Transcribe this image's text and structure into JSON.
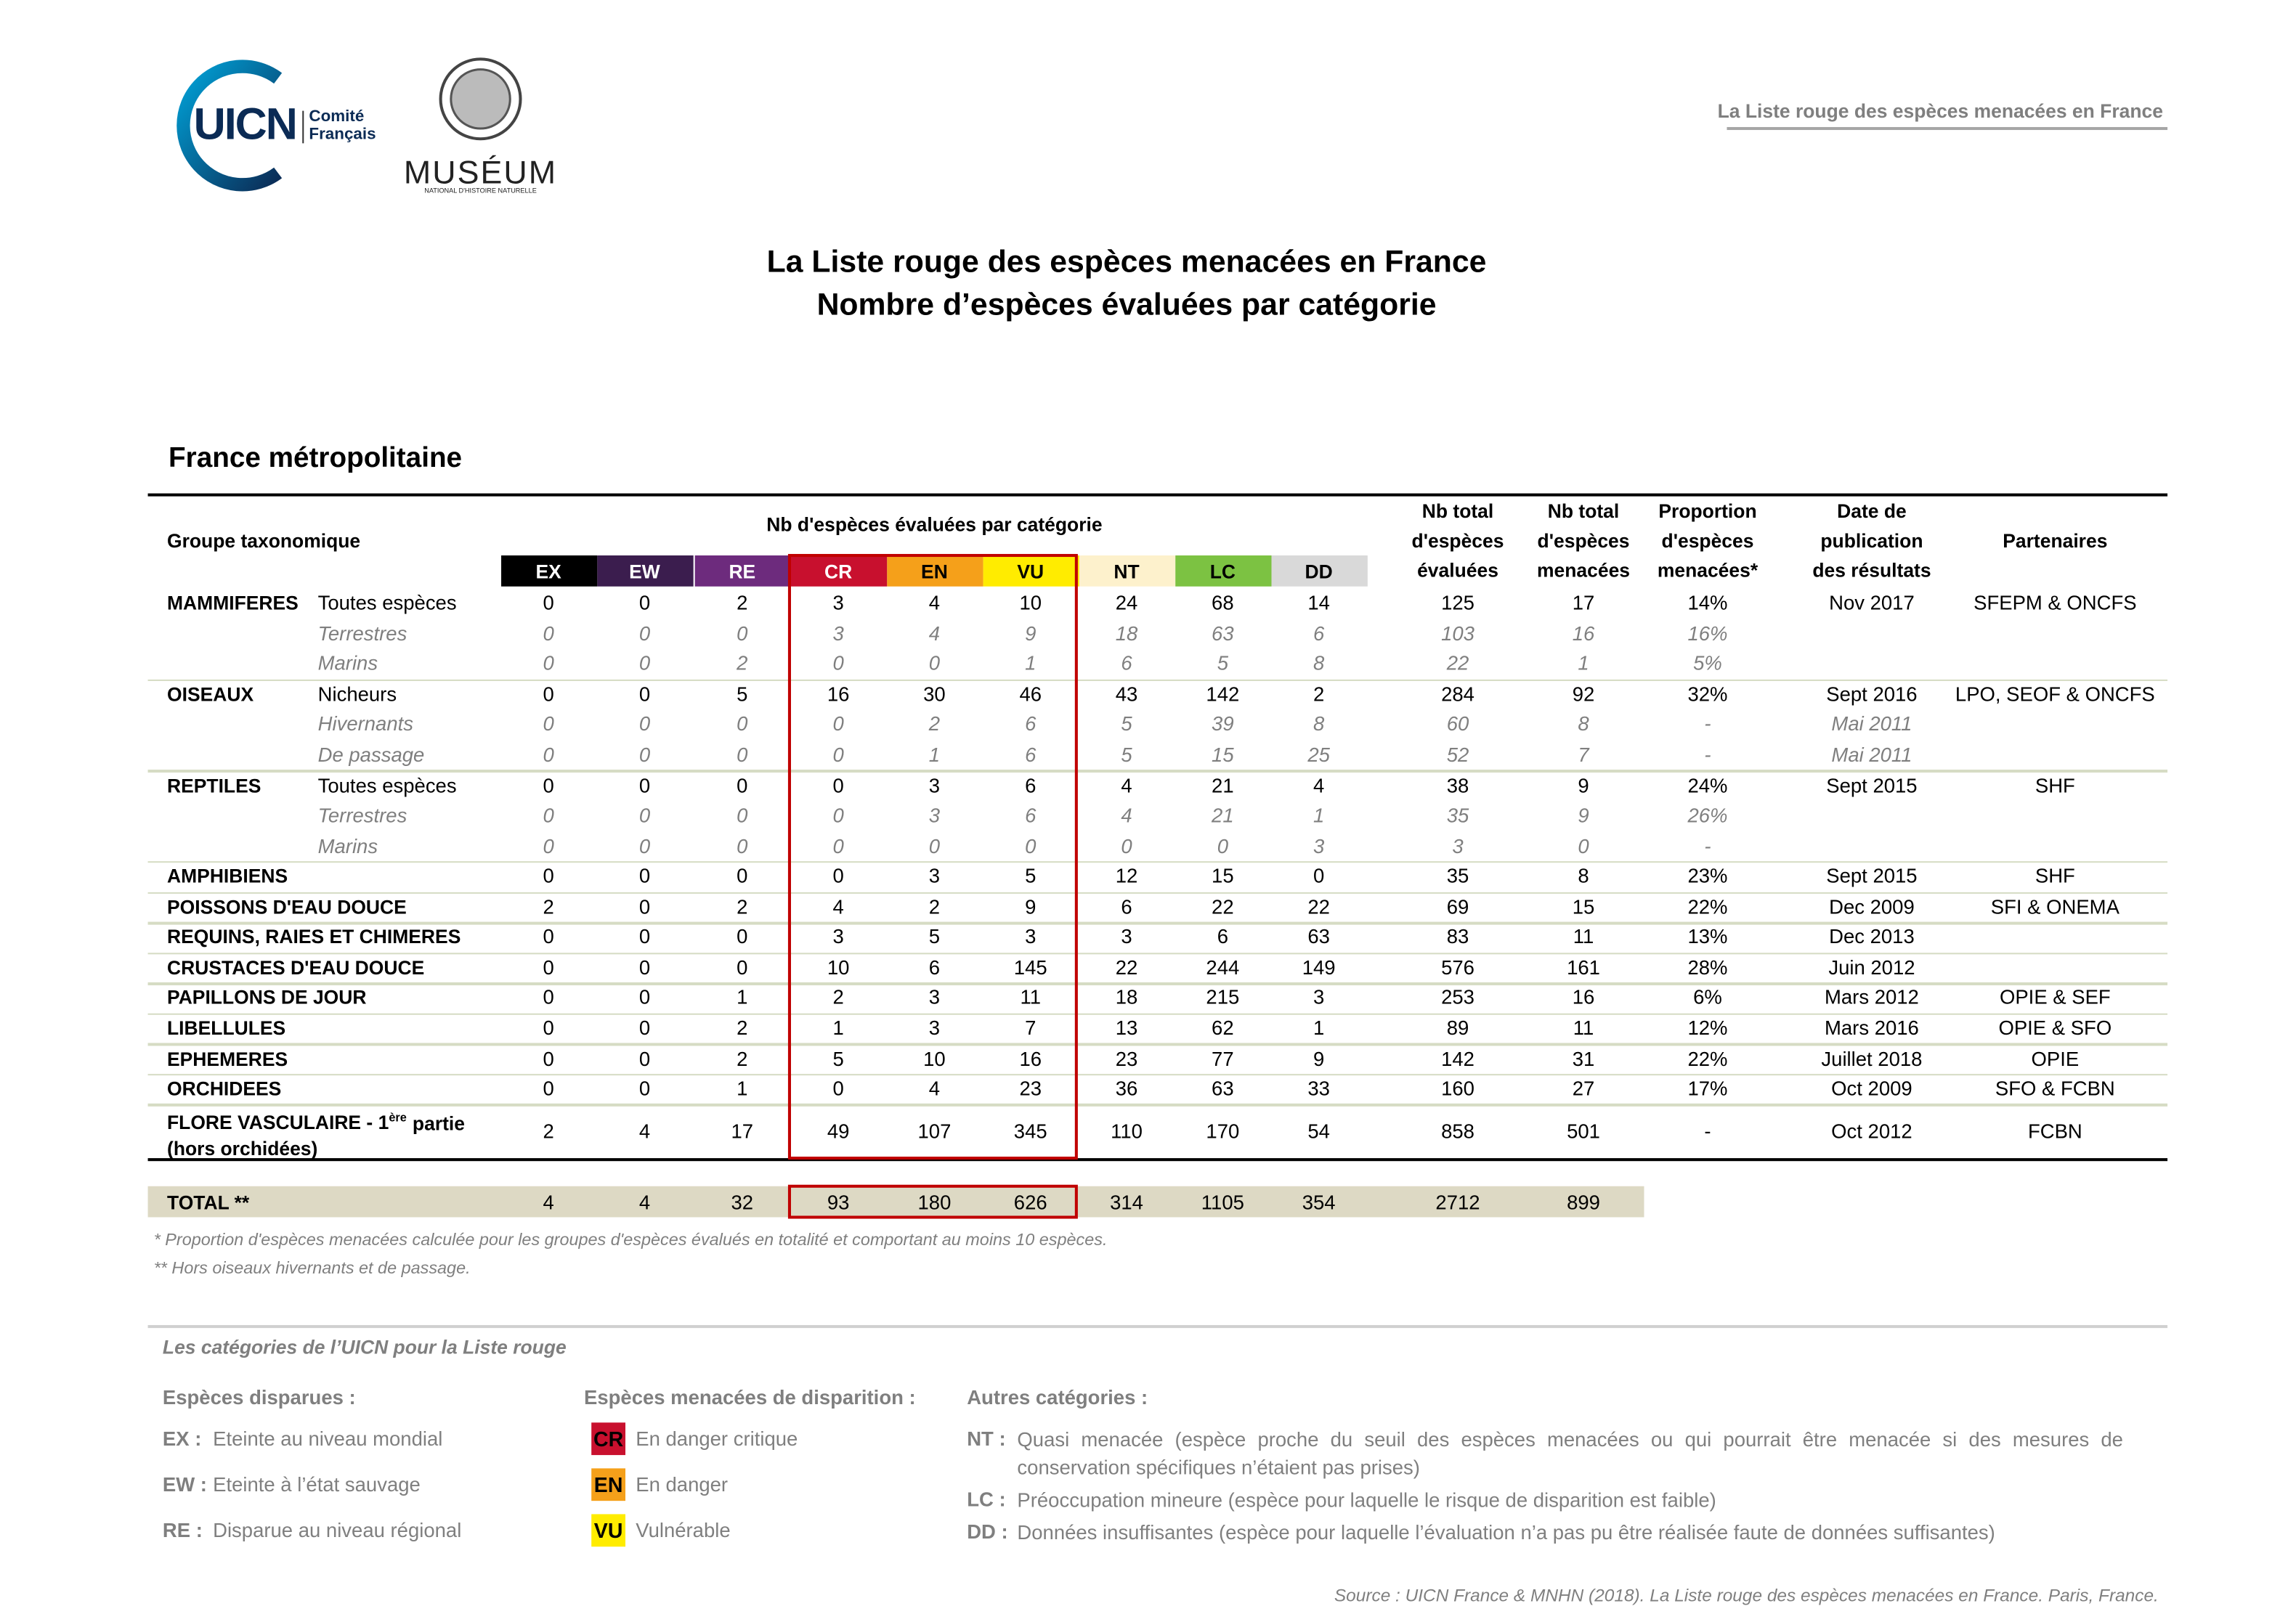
{
  "header": {
    "logo_uicn": "UICN",
    "logo_uicn_sub": [
      "Comité",
      "Français"
    ],
    "logo_museum": "MUSÉUM",
    "logo_museum_sub": "NATIONAL D'HISTOIRE NATURELLE",
    "running_title": "La Liste rouge des espèces menacées en France"
  },
  "title": [
    "La Liste rouge des espèces menacées en France",
    "Nombre d’espèces évaluées par catégorie"
  ],
  "section": "France métropolitaine",
  "table": {
    "head": {
      "group": "Groupe taxonomique",
      "categories_title": "Nb d'espèces évaluées par catégorie",
      "categories": [
        "EX",
        "EW",
        "RE",
        "CR",
        "EN",
        "VU",
        "NT",
        "LC",
        "DD"
      ],
      "category_colors": [
        "#000000",
        "#3b1d4e",
        "#6d2b7d",
        "#c8102e",
        "#f5a01a",
        "#ffec00",
        "#fdf1cc",
        "#7cc242",
        "#d9d9d9"
      ],
      "category_text_colors": [
        "#ffffff",
        "#ffffff",
        "#ffffff",
        "#ffffff",
        "#000000",
        "#000000",
        "#000000",
        "#000000",
        "#000000"
      ],
      "columns": [
        [
          "Nb total",
          "d'espèces",
          "évaluées"
        ],
        [
          "Nb total",
          "d'espèces",
          "menacées"
        ],
        [
          "Proportion",
          "d'espèces",
          "menacées*"
        ],
        [
          "Date de",
          "publication",
          "des résultats"
        ],
        [
          "Partenaires"
        ]
      ]
    },
    "rows": [
      {
        "group": "MAMMIFERES",
        "sub": "Toutes espèces",
        "cells": [
          0,
          0,
          2,
          3,
          4,
          10,
          24,
          68,
          14,
          125,
          17,
          "14%",
          "Nov 2017",
          "SFEPM & ONCFS"
        ]
      },
      {
        "sub": "Terrestres",
        "italic": true,
        "cells": [
          0,
          0,
          0,
          3,
          4,
          9,
          18,
          63,
          6,
          103,
          16,
          "16%"
        ]
      },
      {
        "sub": "Marins",
        "italic": true,
        "cells": [
          0,
          0,
          2,
          0,
          0,
          1,
          6,
          5,
          8,
          22,
          1,
          "5%"
        ]
      },
      {
        "group": "OISEAUX",
        "sub": "Nicheurs",
        "cells": [
          0,
          0,
          5,
          16,
          30,
          46,
          43,
          142,
          2,
          284,
          92,
          "32%",
          "Sept 2016",
          "LPO, SEOF & ONCFS"
        ]
      },
      {
        "sub": "Hivernants",
        "italic": true,
        "cells": [
          0,
          0,
          0,
          0,
          2,
          6,
          5,
          39,
          8,
          60,
          8,
          "-",
          "Mai 2011"
        ]
      },
      {
        "sub": "De passage",
        "italic": true,
        "cells": [
          0,
          0,
          0,
          0,
          1,
          6,
          5,
          15,
          25,
          52,
          7,
          "-",
          "Mai 2011"
        ]
      },
      {
        "group": "REPTILES",
        "sub": "Toutes espèces",
        "cells": [
          0,
          0,
          0,
          0,
          3,
          6,
          4,
          21,
          4,
          38,
          9,
          "24%",
          "Sept 2015",
          "SHF"
        ]
      },
      {
        "sub": "Terrestres",
        "italic": true,
        "cells": [
          0,
          0,
          0,
          0,
          3,
          6,
          4,
          21,
          1,
          35,
          9,
          "26%"
        ]
      },
      {
        "sub": "Marins",
        "italic": true,
        "cells": [
          0,
          0,
          0,
          0,
          0,
          0,
          0,
          0,
          3,
          3,
          0,
          "-"
        ]
      },
      {
        "group": "AMPHIBIENS",
        "cells": [
          0,
          0,
          0,
          0,
          3,
          5,
          12,
          15,
          0,
          35,
          8,
          "23%",
          "Sept 2015",
          "SHF"
        ]
      },
      {
        "group": "POISSONS D'EAU DOUCE",
        "cells": [
          2,
          0,
          2,
          4,
          2,
          9,
          6,
          22,
          22,
          69,
          15,
          "22%",
          "Dec 2009",
          "SFI & ONEMA"
        ]
      },
      {
        "group": "REQUINS, RAIES ET CHIMERES",
        "cells": [
          0,
          0,
          0,
          3,
          5,
          3,
          3,
          6,
          63,
          83,
          11,
          "13%",
          "Dec 2013"
        ]
      },
      {
        "group": "CRUSTACES D'EAU DOUCE",
        "cells": [
          0,
          0,
          0,
          10,
          6,
          145,
          22,
          244,
          149,
          576,
          161,
          "28%",
          "Juin 2012"
        ]
      },
      {
        "group": "PAPILLONS DE JOUR",
        "cells": [
          0,
          0,
          1,
          2,
          3,
          11,
          18,
          215,
          3,
          253,
          16,
          "6%",
          "Mars 2012",
          "OPIE & SEF"
        ]
      },
      {
        "group": "LIBELLULES",
        "cells": [
          0,
          0,
          2,
          1,
          3,
          7,
          13,
          62,
          1,
          89,
          11,
          "12%",
          "Mars 2016",
          "OPIE & SFO"
        ]
      },
      {
        "group": "EPHEMERES",
        "cells": [
          0,
          0,
          2,
          5,
          10,
          16,
          23,
          77,
          9,
          142,
          31,
          "22%",
          "Juillet 2018",
          "OPIE"
        ]
      },
      {
        "group": "ORCHIDEES",
        "cells": [
          0,
          0,
          1,
          0,
          4,
          23,
          36,
          63,
          33,
          160,
          27,
          "17%",
          "Oct 2009",
          "SFO & FCBN"
        ]
      },
      {
        "group": "FLORE VASCULAIRE - 1",
        "group_sup": "ère",
        "group_rest": "partie",
        "group_line2": "(hors orchidées)",
        "cells": [
          2,
          4,
          17,
          49,
          107,
          345,
          110,
          170,
          54,
          858,
          501,
          "-",
          "Oct 2012",
          "FCBN"
        ]
      }
    ],
    "total": {
      "label": "TOTAL **",
      "cells": [
        4,
        4,
        32,
        93,
        180,
        626,
        314,
        1105,
        354,
        2712,
        899
      ]
    }
  },
  "footnotes": [
    "* Proportion d'espèces menacées calculée pour les groupes d'espèces évalués en totalité et comportant au moins 10 espèces.",
    "** Hors oiseaux hivernants et de passage."
  ],
  "legend": {
    "title": "Les catégories de l’UICN pour la Liste rouge",
    "columns": [
      {
        "heading": "Espèces disparues :",
        "items": [
          {
            "code": "EX :",
            "text": "Eteinte au niveau mondial"
          },
          {
            "code": "EW :",
            "text": "Eteinte à l’état sauvage"
          },
          {
            "code": "RE :",
            "text": "Disparue au niveau régional"
          }
        ]
      },
      {
        "heading": "Espèces menacées de disparition :",
        "items": [
          {
            "code": "CR",
            "text": "En danger critique"
          },
          {
            "code": "EN",
            "text": "En danger"
          },
          {
            "code": "VU",
            "text": "Vulnérable"
          }
        ]
      },
      {
        "heading": "Autres catégories :",
        "items": [
          {
            "code": "NT :",
            "text": "Quasi menacée (espèce proche du seuil des espèces menacées ou qui pourrait être menacée si des mesures de conservation spécifiques n’étaient pas prises)"
          },
          {
            "code": "LC :",
            "text": "Préoccupation mineure (espèce pour laquelle le risque de disparition est faible)"
          },
          {
            "code": "DD :",
            "text": "Données insuffisantes (espèce pour laquelle l’évaluation n’a pas pu être réalisée faute de données suffisantes)"
          }
        ]
      }
    ]
  },
  "source": "Source : UICN France & MNHN (2018). La Liste rouge des espèces menacées en France. Paris, France."
}
